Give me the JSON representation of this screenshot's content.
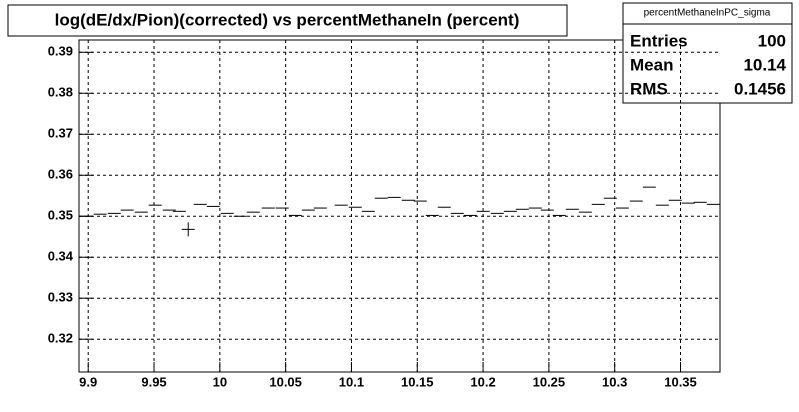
{
  "chart_data": {
    "type": "profile",
    "title": "log(dE/dx/Pion)(corrected) vs percentMethaneIn (percent)",
    "xlim": [
      9.893,
      10.38
    ],
    "ylim": [
      0.312,
      0.393
    ],
    "xticks": [
      9.9,
      9.95,
      10,
      10.05,
      10.1,
      10.15,
      10.2,
      10.25,
      10.3,
      10.35
    ],
    "yticks": [
      0.32,
      0.33,
      0.34,
      0.35,
      0.36,
      0.37,
      0.38,
      0.39
    ],
    "grid": true,
    "color": "#000000",
    "x": [
      9.8985,
      9.9091,
      9.9198,
      9.9296,
      9.9403,
      9.9509,
      9.9616,
      9.9692,
      9.976,
      9.9851,
      9.995,
      10.0056,
      10.0155,
      10.0254,
      10.0368,
      10.0474,
      10.0573,
      10.0672,
      10.0763,
      10.0922,
      10.1029,
      10.1128,
      10.1226,
      10.1325,
      10.1432,
      10.1523,
      10.1614,
      10.1705,
      10.1804,
      10.1903,
      10.2001,
      10.2108,
      10.2207,
      10.2298,
      10.2397,
      10.2488,
      10.2579,
      10.2678,
      10.2777,
      10.2875,
      10.2967,
      10.3058,
      10.3164,
      10.3263,
      10.3362,
      10.346,
      10.3559,
      10.365,
      10.3749
    ],
    "values": [
      0.35,
      0.3505,
      0.3507,
      0.3515,
      0.351,
      0.3527,
      0.3515,
      0.3512,
      0.3468,
      0.3529,
      0.3524,
      0.3507,
      0.35,
      0.351,
      0.352,
      0.352,
      0.3502,
      0.3515,
      0.352,
      0.3527,
      0.3522,
      0.3512,
      0.3544,
      0.3546,
      0.3539,
      0.3537,
      0.3502,
      0.3522,
      0.3507,
      0.3502,
      0.3512,
      0.3507,
      0.3512,
      0.3517,
      0.352,
      0.3515,
      0.3502,
      0.3517,
      0.351,
      0.3529,
      0.3544,
      0.352,
      0.3537,
      0.3571,
      0.3527,
      0.3539,
      0.3532,
      0.3534,
      0.3529
    ],
    "errors": [
      0,
      0,
      0,
      0,
      0,
      0,
      0,
      0,
      0.0017,
      0,
      0,
      0,
      0,
      0,
      0,
      0,
      0,
      0,
      0,
      0,
      0,
      0,
      0,
      0,
      0,
      0,
      0,
      0,
      0,
      0,
      0,
      0,
      0,
      0,
      0,
      0,
      0,
      0,
      0,
      0,
      0,
      0,
      0,
      0,
      0,
      0,
      0,
      0,
      0
    ]
  },
  "stats": {
    "title": "percentMethaneInPC_sigma",
    "rows": [
      {
        "label": "Entries",
        "value": 100
      },
      {
        "label": "Mean",
        "value": 10.14
      },
      {
        "label": "RMS",
        "value": 0.1456
      }
    ]
  }
}
